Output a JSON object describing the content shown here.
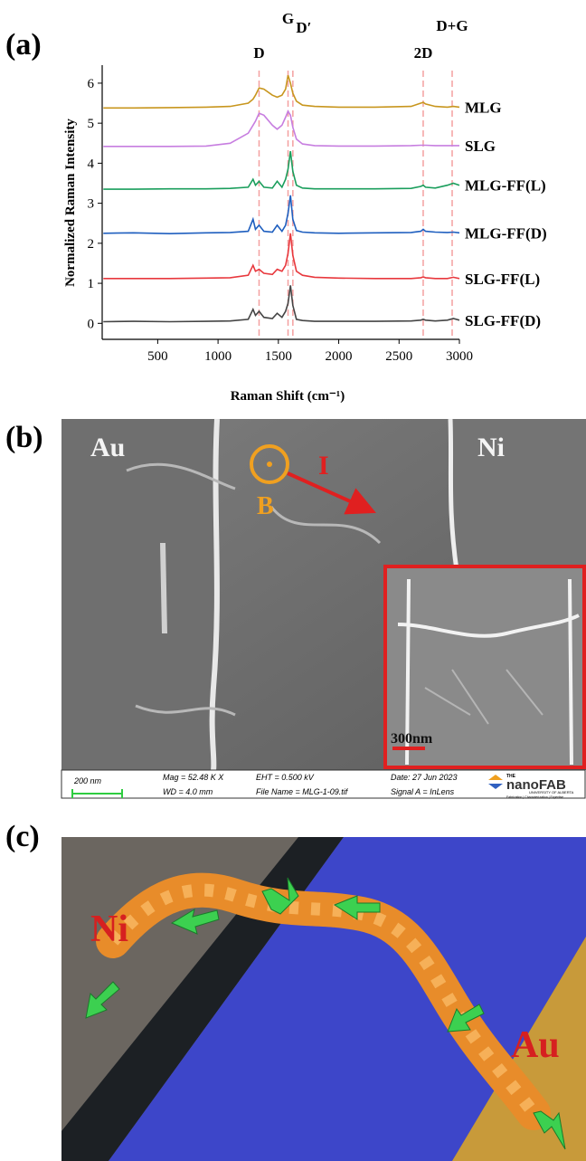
{
  "chart_data": {
    "type": "line",
    "xlabel": "Raman Shift (cm⁻¹)",
    "ylabel": "Normalized Raman Intensity",
    "xlim": [
      40,
      3000
    ],
    "xticks": [
      500,
      1000,
      1500,
      2000,
      2500,
      3000
    ],
    "ylim": [
      -0.4,
      6.45
    ],
    "yticks": [
      0,
      1,
      2,
      3,
      4,
      5,
      6
    ],
    "x": [
      50,
      300,
      600,
      900,
      1100,
      1250,
      1290,
      1310,
      1340,
      1380,
      1450,
      1490,
      1530,
      1560,
      1580,
      1600,
      1620,
      1650,
      1700,
      1800,
      2000,
      2300,
      2600,
      2680,
      2700,
      2720,
      2800,
      2900,
      2950,
      3000
    ],
    "series": [
      {
        "name": "MLG",
        "color": "#c8961e",
        "values": [
          5.38,
          5.38,
          5.39,
          5.4,
          5.42,
          5.5,
          5.6,
          5.7,
          5.88,
          5.85,
          5.7,
          5.65,
          5.7,
          5.85,
          6.2,
          6.0,
          5.75,
          5.55,
          5.45,
          5.42,
          5.4,
          5.4,
          5.42,
          5.5,
          5.52,
          5.48,
          5.42,
          5.4,
          5.42,
          5.4
        ]
      },
      {
        "name": "SLG",
        "color": "#c77ee0",
        "values": [
          4.42,
          4.42,
          4.42,
          4.43,
          4.5,
          4.75,
          4.95,
          5.05,
          5.25,
          5.2,
          4.95,
          4.85,
          4.95,
          5.15,
          5.3,
          5.2,
          4.9,
          4.6,
          4.48,
          4.44,
          4.43,
          4.43,
          4.44,
          4.45,
          4.45,
          4.45,
          4.44,
          4.44,
          4.44,
          4.44
        ]
      },
      {
        "name": "MLG-FF(L)",
        "color": "#1a9e5c",
        "values": [
          3.35,
          3.35,
          3.36,
          3.36,
          3.37,
          3.4,
          3.6,
          3.45,
          3.55,
          3.4,
          3.38,
          3.55,
          3.4,
          3.6,
          3.85,
          4.3,
          3.8,
          3.45,
          3.38,
          3.36,
          3.36,
          3.36,
          3.37,
          3.42,
          3.45,
          3.4,
          3.38,
          3.45,
          3.5,
          3.45
        ]
      },
      {
        "name": "MLG-FF(D)",
        "color": "#1f5fbf",
        "values": [
          2.25,
          2.26,
          2.24,
          2.26,
          2.27,
          2.3,
          2.6,
          2.35,
          2.45,
          2.3,
          2.28,
          2.45,
          2.3,
          2.45,
          2.75,
          3.2,
          2.6,
          2.32,
          2.28,
          2.26,
          2.25,
          2.26,
          2.27,
          2.3,
          2.35,
          2.3,
          2.28,
          2.27,
          2.28,
          2.26
        ]
      },
      {
        "name": "SLG-FF(L)",
        "color": "#e8383d",
        "values": [
          1.12,
          1.12,
          1.12,
          1.13,
          1.14,
          1.2,
          1.45,
          1.3,
          1.35,
          1.25,
          1.22,
          1.35,
          1.3,
          1.45,
          1.75,
          2.25,
          1.7,
          1.3,
          1.2,
          1.15,
          1.13,
          1.12,
          1.12,
          1.14,
          1.16,
          1.14,
          1.12,
          1.12,
          1.15,
          1.12
        ]
      },
      {
        "name": "SLG-FF(D)",
        "color": "#444444",
        "values": [
          0.04,
          0.05,
          0.04,
          0.05,
          0.06,
          0.1,
          0.35,
          0.2,
          0.3,
          0.15,
          0.12,
          0.25,
          0.15,
          0.3,
          0.5,
          0.95,
          0.45,
          0.1,
          0.07,
          0.05,
          0.05,
          0.05,
          0.06,
          0.08,
          0.1,
          0.08,
          0.06,
          0.08,
          0.12,
          0.08
        ]
      }
    ],
    "annotations": [
      {
        "text": "D",
        "x": 1340
      },
      {
        "text": "G",
        "x": 1580
      },
      {
        "text": "D′",
        "x": 1620
      },
      {
        "text": "2D",
        "x": 2700
      },
      {
        "text": "D+G",
        "x": 2940
      }
    ]
  },
  "figure": {
    "panel_labels": [
      "(a)",
      "(b)",
      "(c)"
    ],
    "sem": {
      "labels": [
        "Au",
        "Ni",
        "B",
        "I"
      ],
      "inset_scale": "300nm",
      "info": {
        "scale": "200 nm",
        "mag": "Mag =  52.48 K X",
        "wd": "WD =  4.0 mm",
        "eht": "EHT = 0.500 kV",
        "file": "File Name = MLG-1-09.tif",
        "date": "Date: 27 Jun 2023",
        "signal": "Signal A = InLens",
        "logo": [
          "THE",
          "nanoFAB",
          "UNIVERSITY OF ALBERTA",
          "Fabrication | Characterization | Expertise"
        ]
      }
    },
    "render": {
      "labels": [
        "Ni",
        "Au"
      ]
    }
  }
}
